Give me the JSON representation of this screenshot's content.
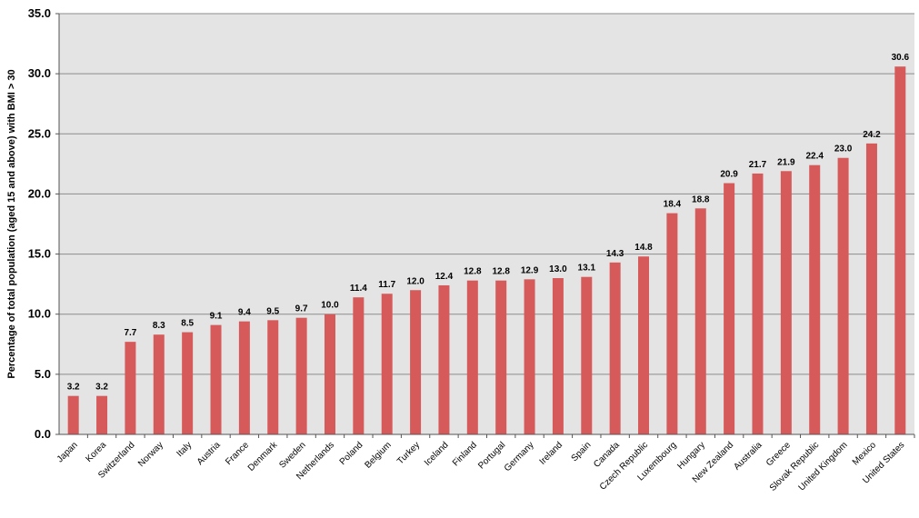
{
  "chart_data": {
    "type": "bar",
    "title": "",
    "xlabel": "",
    "ylabel": "Percentage of total population (aged 15 and above) with BMI > 30",
    "ylim": [
      0,
      35
    ],
    "yticks": [
      "0.0",
      "5.0",
      "10.0",
      "15.0",
      "20.0",
      "25.0",
      "30.0",
      "35.0"
    ],
    "grid": true,
    "bar_color": "#d65a5a",
    "plot_background": "#e4e4e4",
    "categories": [
      "Japan",
      "Korea",
      "Switzerland",
      "Norway",
      "Italy",
      "Austria",
      "France",
      "Denmark",
      "Sweden",
      "Netherlands",
      "Poland",
      "Belgium",
      "Turkey",
      "Iceland",
      "Finland",
      "Portugal",
      "Germany",
      "Ireland",
      "Spain",
      "Canada",
      "Czech Republic",
      "Luxembourg",
      "Hungary",
      "New Zealand",
      "Australia",
      "Greece",
      "Slovak Republic",
      "United Kingdom",
      "Mexico",
      "United States"
    ],
    "values": [
      3.2,
      3.2,
      7.7,
      8.3,
      8.5,
      9.1,
      9.4,
      9.5,
      9.7,
      10.0,
      11.4,
      11.7,
      12.0,
      12.4,
      12.8,
      12.8,
      12.9,
      13.0,
      13.1,
      14.3,
      14.8,
      18.4,
      18.8,
      20.9,
      21.7,
      21.9,
      22.4,
      23.0,
      24.2,
      30.6
    ],
    "value_labels": [
      "3.2",
      "3.2",
      "7.7",
      "8.3",
      "8.5",
      "9.1",
      "9.4",
      "9.5",
      "9.7",
      "10.0",
      "11.4",
      "11.7",
      "12.0",
      "12.4",
      "12.8",
      "12.8",
      "12.9",
      "13.0",
      "13.1",
      "14.3",
      "14.8",
      "18.4",
      "18.8",
      "20.9",
      "21.7",
      "21.9",
      "22.4",
      "23.0",
      "24.2",
      "30.6"
    ]
  }
}
